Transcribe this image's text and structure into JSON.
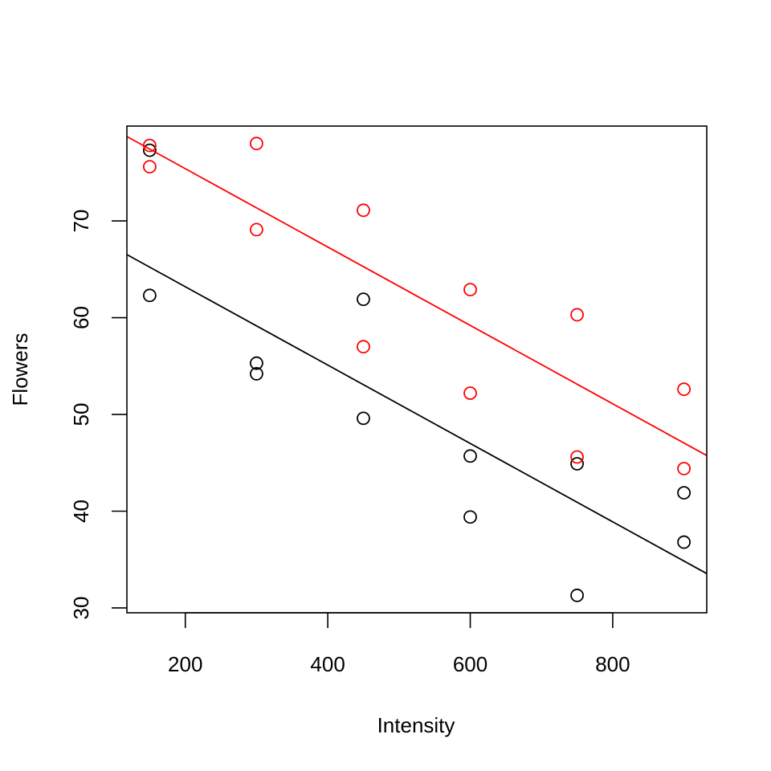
{
  "chart_data": {
    "type": "scatter",
    "title": "",
    "xlabel": "Intensity",
    "ylabel": "Flowers",
    "xlim": [
      118,
      932
    ],
    "ylim": [
      29.5,
      79.8
    ],
    "x_ticks": [
      200,
      400,
      600,
      800
    ],
    "y_ticks": [
      30,
      40,
      50,
      60,
      70
    ],
    "grid": false,
    "legend": "none",
    "series": [
      {
        "color": "#000000",
        "points": [
          {
            "x": 150,
            "y": 77.3
          },
          {
            "x": 150,
            "y": 62.3
          },
          {
            "x": 300,
            "y": 55.3
          },
          {
            "x": 300,
            "y": 54.2
          },
          {
            "x": 450,
            "y": 61.9
          },
          {
            "x": 450,
            "y": 49.6
          },
          {
            "x": 600,
            "y": 45.7
          },
          {
            "x": 600,
            "y": 39.4
          },
          {
            "x": 750,
            "y": 44.9
          },
          {
            "x": 750,
            "y": 31.3
          },
          {
            "x": 900,
            "y": 41.9
          },
          {
            "x": 900,
            "y": 36.8
          }
        ],
        "fit_line": {
          "intercept": 71.3,
          "slope": -0.0405
        }
      },
      {
        "color": "#ff0000",
        "points": [
          {
            "x": 150,
            "y": 77.8
          },
          {
            "x": 150,
            "y": 75.6
          },
          {
            "x": 300,
            "y": 78.0
          },
          {
            "x": 300,
            "y": 69.1
          },
          {
            "x": 450,
            "y": 71.1
          },
          {
            "x": 450,
            "y": 57.0
          },
          {
            "x": 600,
            "y": 62.9
          },
          {
            "x": 600,
            "y": 52.2
          },
          {
            "x": 750,
            "y": 60.3
          },
          {
            "x": 750,
            "y": 45.6
          },
          {
            "x": 900,
            "y": 52.6
          },
          {
            "x": 900,
            "y": 44.4
          }
        ],
        "fit_line": {
          "intercept": 83.5,
          "slope": -0.0405
        }
      }
    ]
  }
}
